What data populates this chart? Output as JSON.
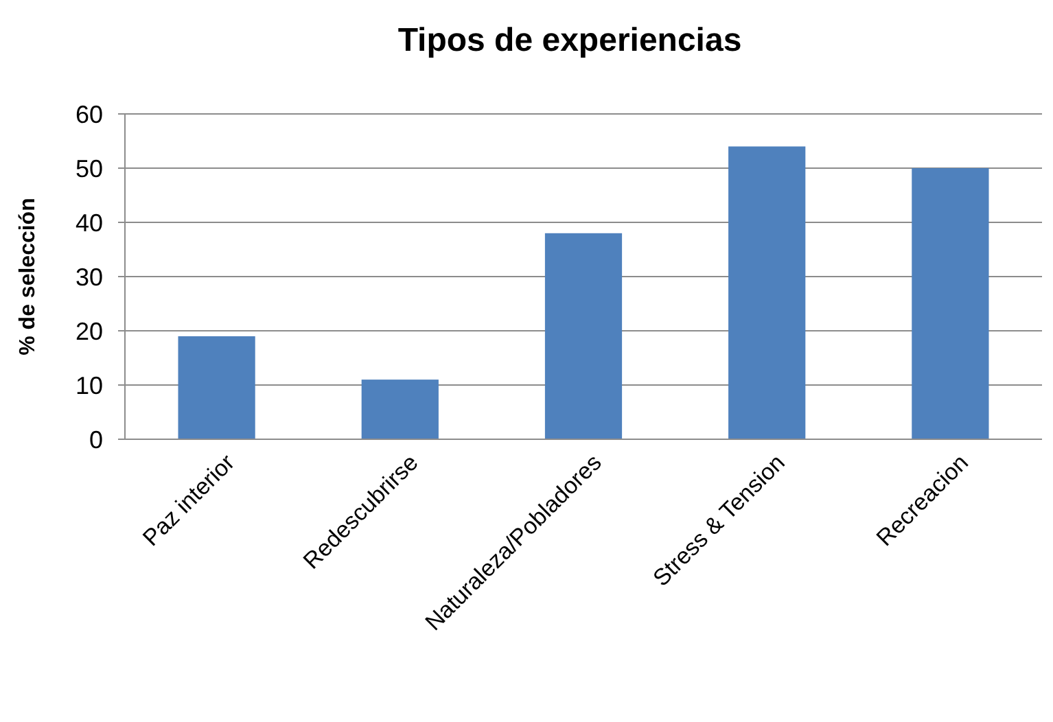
{
  "chart_data": {
    "type": "bar",
    "title": "Tipos de experiencias",
    "ylabel": "% de selección",
    "categories": [
      "Paz interior",
      "Redescubrirse",
      "Naturaleza/Pobladores",
      "Stress & Tension",
      "Recreacion"
    ],
    "values": [
      19,
      11,
      38,
      54,
      50
    ],
    "color": "#4f81bd",
    "ylim": [
      0,
      60
    ],
    "yticks": [
      0,
      10,
      20,
      30,
      40,
      50,
      60
    ],
    "grid": "y"
  }
}
